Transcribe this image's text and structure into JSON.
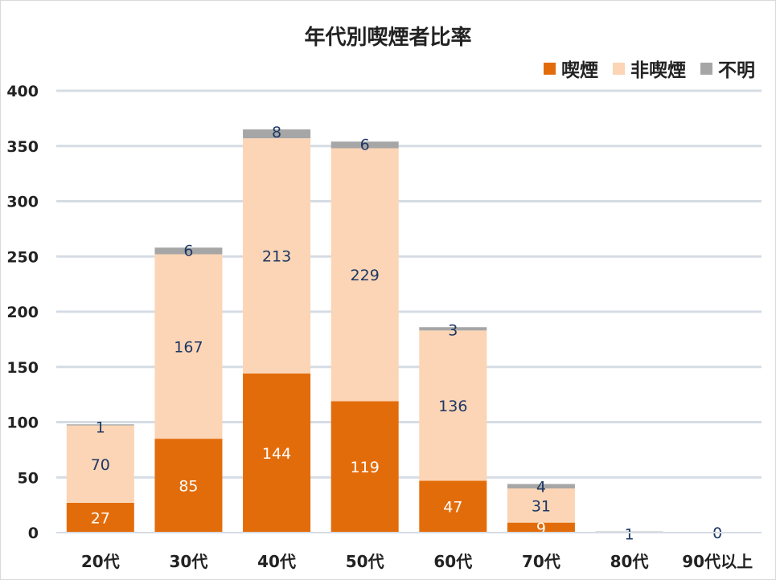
{
  "chart_data": {
    "type": "bar",
    "stacked": true,
    "title": "年代別喫煙者比率",
    "categories": [
      "20代",
      "30代",
      "40代",
      "50代",
      "60代",
      "70代",
      "80代",
      "90代以上"
    ],
    "series": [
      {
        "name": "喫煙",
        "color": "#e36c0a",
        "label_color": "#ffffff",
        "values": [
          27,
          85,
          144,
          119,
          47,
          9,
          0,
          0
        ],
        "labels": [
          "27",
          "85",
          "144",
          "119",
          "47",
          "9",
          "",
          ""
        ]
      },
      {
        "name": "非喫煙",
        "color": "#fbd5b5",
        "label_color": "#1f3864",
        "values": [
          70,
          167,
          213,
          229,
          136,
          31,
          0,
          0
        ],
        "labels": [
          "70",
          "167",
          "213",
          "229",
          "136",
          "31",
          "",
          ""
        ]
      },
      {
        "name": "不明",
        "color": "#a6a6a6",
        "label_color": "#1f3864",
        "values": [
          1,
          6,
          8,
          6,
          3,
          4,
          1,
          0
        ],
        "labels": [
          "1",
          "6",
          "8",
          "6",
          "3",
          "4",
          "1",
          "0"
        ]
      }
    ],
    "y_ticks": [
      "0",
      "50",
      "100",
      "150",
      "200",
      "250",
      "300",
      "350",
      "400"
    ],
    "ylim": [
      0,
      400
    ],
    "grid": true,
    "legend_position": "top-right"
  }
}
